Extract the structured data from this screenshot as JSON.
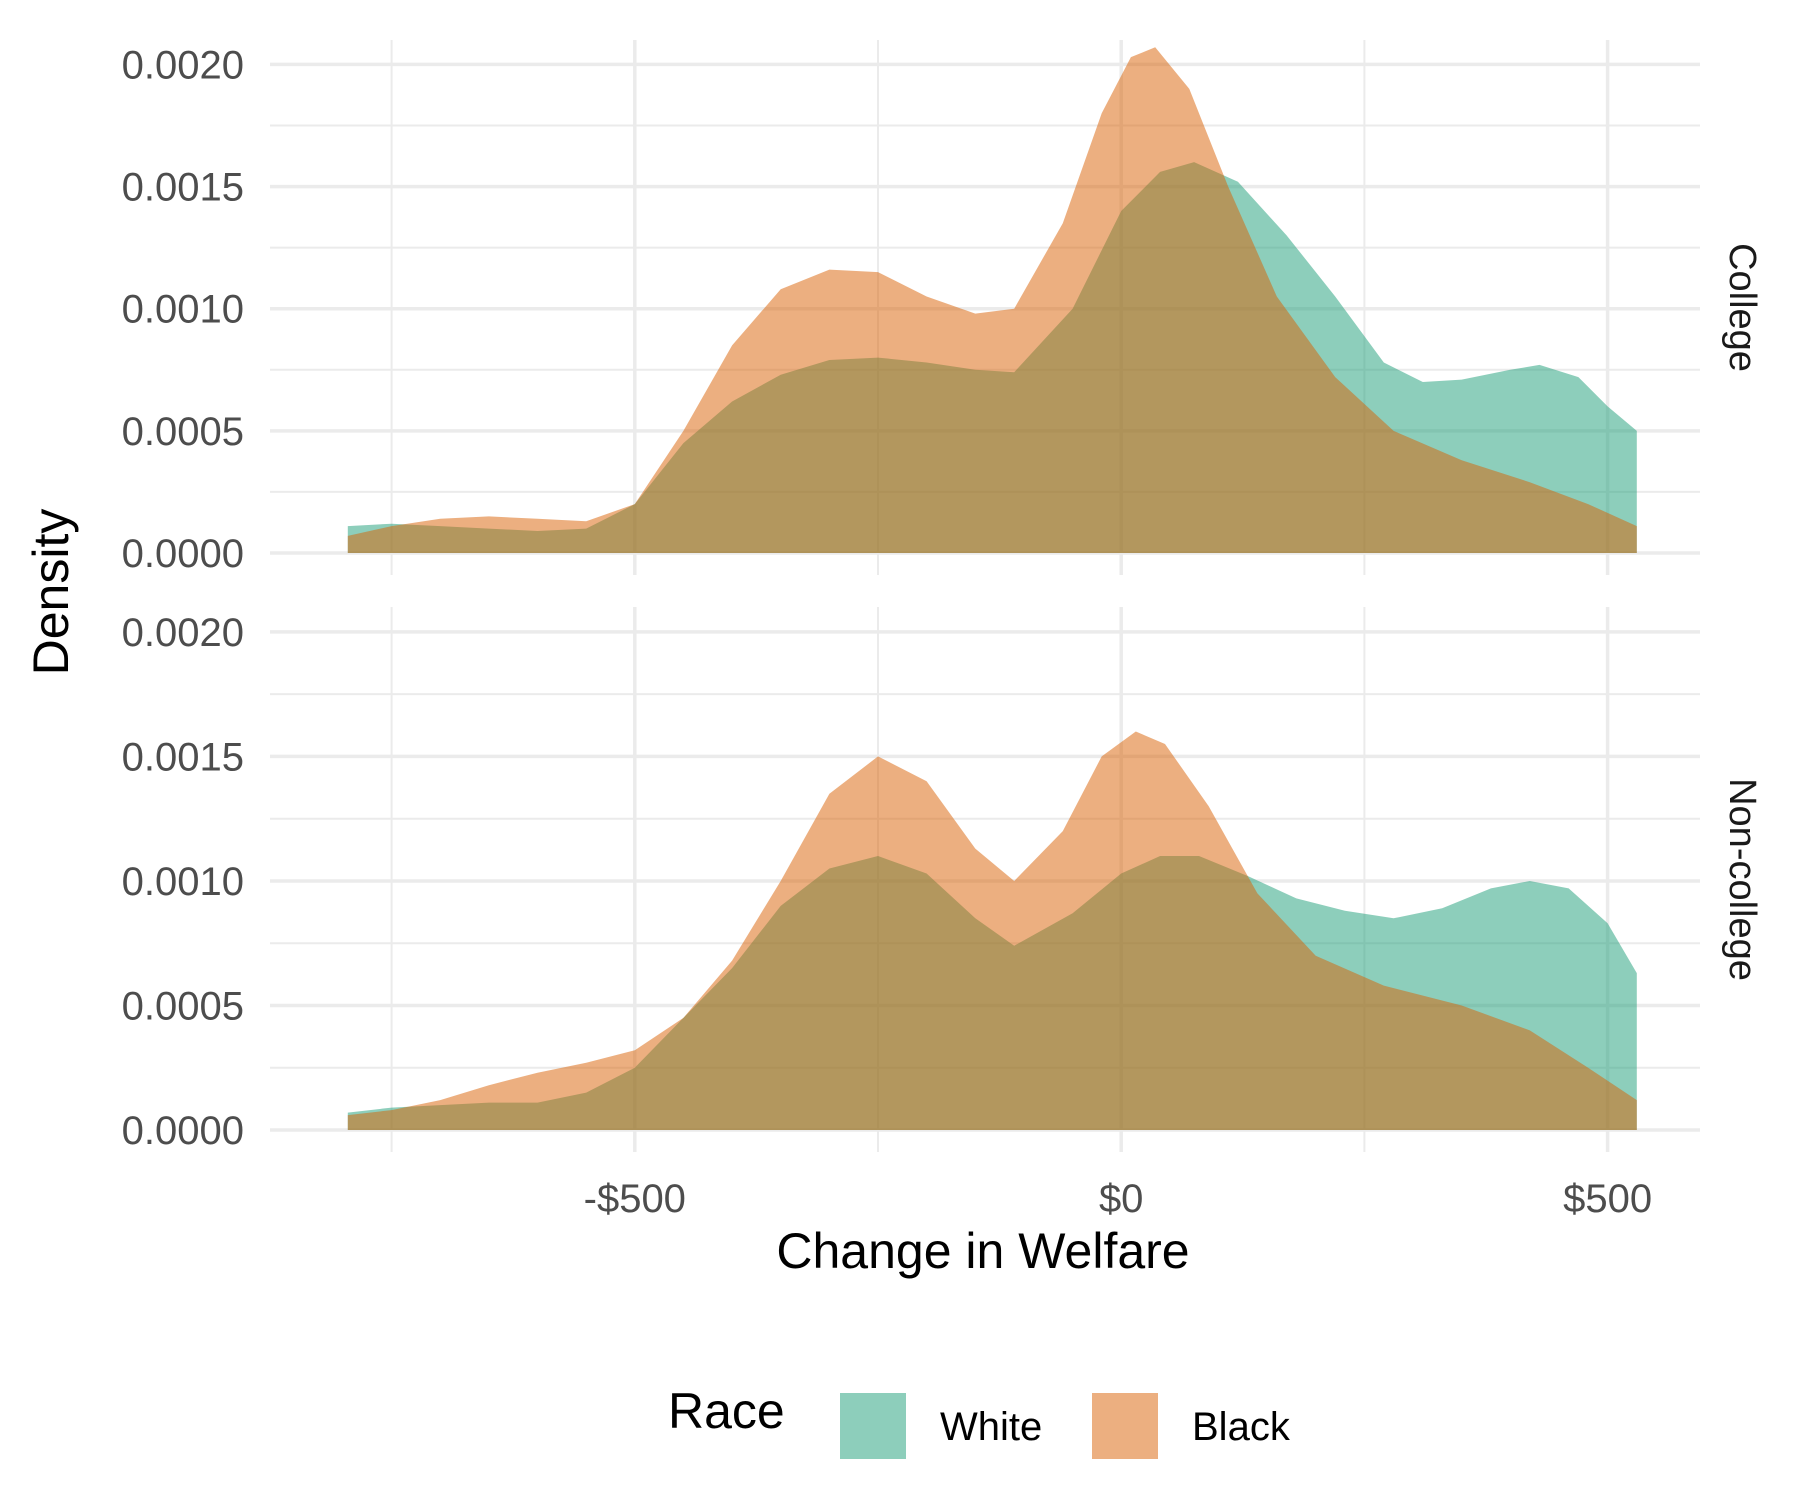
{
  "chart_data": {
    "type": "area",
    "subtype": "density",
    "xlabel": "Change in Welfare",
    "ylabel": "Density",
    "xlim": [
      -875,
      595
    ],
    "ylim": [
      0,
      0.0021
    ],
    "x_ticks": [
      -500,
      0,
      500
    ],
    "x_tick_labels": [
      "-$500",
      "$0",
      "$500"
    ],
    "y_ticks": [
      0,
      0.0005,
      0.001,
      0.0015,
      0.002
    ],
    "y_tick_labels": [
      "0.0000",
      "0.0005",
      "0.0010",
      "0.0015",
      "0.0020"
    ],
    "grid": true,
    "legend": {
      "title": "Race",
      "position": "bottom",
      "entries": [
        {
          "label": "White",
          "color": "#1b9e77"
        },
        {
          "label": "Black",
          "color": "#d95f02"
        }
      ]
    },
    "fill_opacity": 0.5,
    "facets": [
      {
        "label": "College",
        "series": [
          {
            "name": "White",
            "color": "#1b9e77",
            "points": [
              [
                -795,
                0.00011
              ],
              [
                -750,
                0.00012
              ],
              [
                -700,
                0.00011
              ],
              [
                -650,
                0.0001
              ],
              [
                -600,
                9e-05
              ],
              [
                -550,
                0.0001
              ],
              [
                -500,
                0.0002
              ],
              [
                -450,
                0.00045
              ],
              [
                -400,
                0.00062
              ],
              [
                -350,
                0.00073
              ],
              [
                -300,
                0.00079
              ],
              [
                -250,
                0.0008
              ],
              [
                -200,
                0.00078
              ],
              [
                -150,
                0.00075
              ],
              [
                -110,
                0.00074
              ],
              [
                -50,
                0.001
              ],
              [
                0,
                0.0014
              ],
              [
                40,
                0.00156
              ],
              [
                75,
                0.0016
              ],
              [
                120,
                0.00152
              ],
              [
                170,
                0.0013
              ],
              [
                220,
                0.00105
              ],
              [
                270,
                0.00078
              ],
              [
                310,
                0.0007
              ],
              [
                350,
                0.00071
              ],
              [
                400,
                0.00075
              ],
              [
                430,
                0.00077
              ],
              [
                470,
                0.00072
              ],
              [
                500,
                0.0006
              ],
              [
                530,
                0.0005
              ]
            ]
          },
          {
            "name": "Black",
            "color": "#d95f02",
            "points": [
              [
                -795,
                7e-05
              ],
              [
                -750,
                0.00011
              ],
              [
                -700,
                0.00014
              ],
              [
                -650,
                0.00015
              ],
              [
                -600,
                0.00014
              ],
              [
                -550,
                0.00013
              ],
              [
                -500,
                0.0002
              ],
              [
                -450,
                0.0005
              ],
              [
                -400,
                0.00085
              ],
              [
                -350,
                0.00108
              ],
              [
                -300,
                0.00116
              ],
              [
                -250,
                0.00115
              ],
              [
                -200,
                0.00105
              ],
              [
                -150,
                0.00098
              ],
              [
                -110,
                0.001
              ],
              [
                -60,
                0.00135
              ],
              [
                -20,
                0.0018
              ],
              [
                10,
                0.00203
              ],
              [
                35,
                0.00207
              ],
              [
                70,
                0.0019
              ],
              [
                110,
                0.0015
              ],
              [
                160,
                0.00105
              ],
              [
                220,
                0.00072
              ],
              [
                280,
                0.0005
              ],
              [
                350,
                0.00038
              ],
              [
                420,
                0.00029
              ],
              [
                480,
                0.0002
              ],
              [
                530,
                0.00011
              ]
            ]
          }
        ]
      },
      {
        "label": "Non-college",
        "series": [
          {
            "name": "White",
            "color": "#1b9e77",
            "points": [
              [
                -795,
                7e-05
              ],
              [
                -750,
                9e-05
              ],
              [
                -700,
                0.0001
              ],
              [
                -650,
                0.00011
              ],
              [
                -600,
                0.00011
              ],
              [
                -550,
                0.00015
              ],
              [
                -500,
                0.00025
              ],
              [
                -450,
                0.00045
              ],
              [
                -400,
                0.00065
              ],
              [
                -350,
                0.0009
              ],
              [
                -300,
                0.00105
              ],
              [
                -250,
                0.0011
              ],
              [
                -200,
                0.00103
              ],
              [
                -150,
                0.00085
              ],
              [
                -110,
                0.00074
              ],
              [
                -50,
                0.00087
              ],
              [
                0,
                0.00103
              ],
              [
                40,
                0.0011
              ],
              [
                80,
                0.0011
              ],
              [
                130,
                0.00102
              ],
              [
                180,
                0.00093
              ],
              [
                230,
                0.00088
              ],
              [
                280,
                0.00085
              ],
              [
                330,
                0.00089
              ],
              [
                380,
                0.00097
              ],
              [
                420,
                0.001
              ],
              [
                460,
                0.00097
              ],
              [
                500,
                0.00083
              ],
              [
                530,
                0.00063
              ]
            ]
          },
          {
            "name": "Black",
            "color": "#d95f02",
            "points": [
              [
                -795,
                6e-05
              ],
              [
                -750,
                8e-05
              ],
              [
                -700,
                0.00012
              ],
              [
                -650,
                0.00018
              ],
              [
                -600,
                0.00023
              ],
              [
                -550,
                0.00027
              ],
              [
                -500,
                0.00032
              ],
              [
                -450,
                0.00045
              ],
              [
                -400,
                0.00068
              ],
              [
                -350,
                0.001
              ],
              [
                -300,
                0.00135
              ],
              [
                -250,
                0.0015
              ],
              [
                -200,
                0.0014
              ],
              [
                -150,
                0.00113
              ],
              [
                -110,
                0.001
              ],
              [
                -60,
                0.0012
              ],
              [
                -20,
                0.0015
              ],
              [
                15,
                0.0016
              ],
              [
                45,
                0.00155
              ],
              [
                90,
                0.0013
              ],
              [
                140,
                0.00095
              ],
              [
                200,
                0.0007
              ],
              [
                270,
                0.00058
              ],
              [
                350,
                0.0005
              ],
              [
                420,
                0.0004
              ],
              [
                480,
                0.00025
              ],
              [
                530,
                0.00012
              ]
            ]
          }
        ]
      }
    ]
  }
}
